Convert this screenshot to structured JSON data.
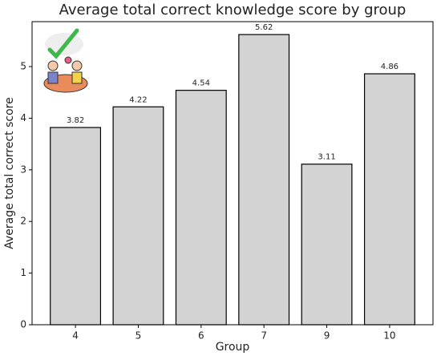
{
  "chart_data": {
    "type": "bar",
    "title": "Average total correct knowledge score by group",
    "x_label": "Group",
    "y_label": "Average total correct score",
    "categories": [
      "4",
      "5",
      "6",
      "7",
      "9",
      "10"
    ],
    "values": [
      3.82,
      4.22,
      4.54,
      5.62,
      3.11,
      4.86
    ],
    "color": "#d3d3d3",
    "ylim": [
      0,
      5.87
    ],
    "yticks": [
      0,
      1,
      2,
      3,
      4,
      5
    ],
    "grid": false
  }
}
